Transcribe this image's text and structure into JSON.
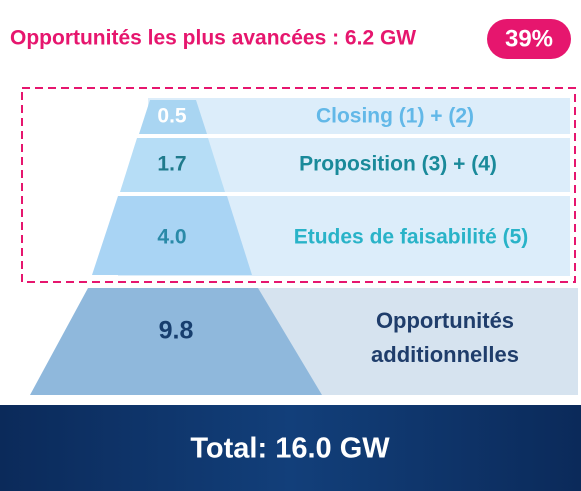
{
  "header": {
    "title": "Opportunités les plus avancées : 6.2 GW",
    "badge": "39%"
  },
  "tiers": [
    {
      "value": "0.5",
      "label": "Closing (1) + (2)"
    },
    {
      "value": "1.7",
      "label": "Proposition (3) + (4)"
    },
    {
      "value": "4.0",
      "label": "Etudes de faisabilité (5)"
    },
    {
      "value": "9.8",
      "label": "Opportunités additionnelles"
    }
  ],
  "footer": {
    "total": "Total: 16.0 GW"
  }
}
